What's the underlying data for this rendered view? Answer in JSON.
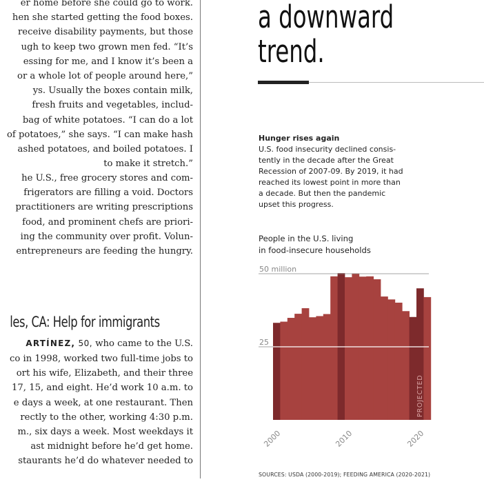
{
  "article": {
    "para1": [
      "er home before she could go to work.",
      "hen she started getting the food boxes.",
      "receive disability payments, but those",
      "ugh to keep two grown men fed. “It’s",
      "essing for me, and I know it’s been a",
      "or a whole lot of people around here,”",
      "ys. Usually the boxes contain milk,",
      "fresh fruits and vegetables, includ-",
      "bag of white potatoes. “I can do a lot",
      "of potatoes,” she says. “I can make hash",
      "ashed potatoes, and boiled potatoes. I",
      "to make it stretch.”"
    ],
    "para2": [
      "he U.S., free grocery stores and com-",
      "frigerators are filling a void. Doctors",
      "practitioners are writing prescriptions",
      "food, and prominent chefs are priori-",
      "ing the community over profit. Volun-",
      "entrepreneurs are feeding the hungry."
    ],
    "headline": "les, CA: Help for immigrants",
    "byline_name": "ARTÍNEZ,",
    "byline_age": " 50,",
    "byline_rest": " who came to the U.S.",
    "para3": [
      "co in 1998, worked two full-time jobs to",
      "ort his wife, Elizabeth, and their three",
      "17, 15, and eight. He’d work 10 a.m. to",
      "e days a week, at one restaurant. Then",
      "rectly to the other, working 4:30 p.m.",
      "m., six days a week. Most weekdays it",
      "ast midnight before he’d get home.",
      "staurants he’d do whatever needed to"
    ]
  },
  "pull_quote": [
    "a downward",
    "trend."
  ],
  "chart_header": {
    "title": "Hunger rises again",
    "body": [
      "U.S. food insecurity declined consis-",
      "tently in the decade after the Great",
      "Recession of 2007-09. By 2019, it had",
      "reached its lowest point in more than",
      "a decade. But then the pandemic",
      "upset this progress."
    ],
    "subtitle": [
      "People in the U.S. living",
      "in food-insecure households"
    ]
  },
  "chart_data": {
    "type": "bar",
    "title": "Hunger rises again",
    "ylabel": "People in the U.S. living in food-insecure households",
    "x": [
      2000,
      2001,
      2002,
      2003,
      2004,
      2005,
      2006,
      2007,
      2008,
      2009,
      2010,
      2011,
      2012,
      2013,
      2014,
      2015,
      2016,
      2017,
      2018,
      2019,
      2020,
      2021
    ],
    "values": [
      33.2,
      33.6,
      34.9,
      36.3,
      38.2,
      35.1,
      35.5,
      36.2,
      49.1,
      50.2,
      48.8,
      50.1,
      49.0,
      49.1,
      48.1,
      42.2,
      41.2,
      40.1,
      37.2,
      35.2,
      45.0,
      42.0
    ],
    "highlight_years": [
      2000,
      2009,
      2019,
      2020
    ],
    "projected_years": [
      2020,
      2021
    ],
    "projected_label": "PROJECTED",
    "y_ticks": [
      {
        "value": 25,
        "label": "25"
      },
      {
        "value": 50,
        "label": "50 million"
      }
    ],
    "x_ticks": [
      "2000",
      "2010",
      "2020"
    ],
    "ylim": [
      0,
      50
    ],
    "grid": true,
    "colors": {
      "bar": "#a7423f",
      "highlight": "#7d2a2c",
      "gridline": "#888888"
    }
  },
  "sources": "SOURCES: USDA (2000-2019); FEEDING AMERICA (2020-2021)"
}
